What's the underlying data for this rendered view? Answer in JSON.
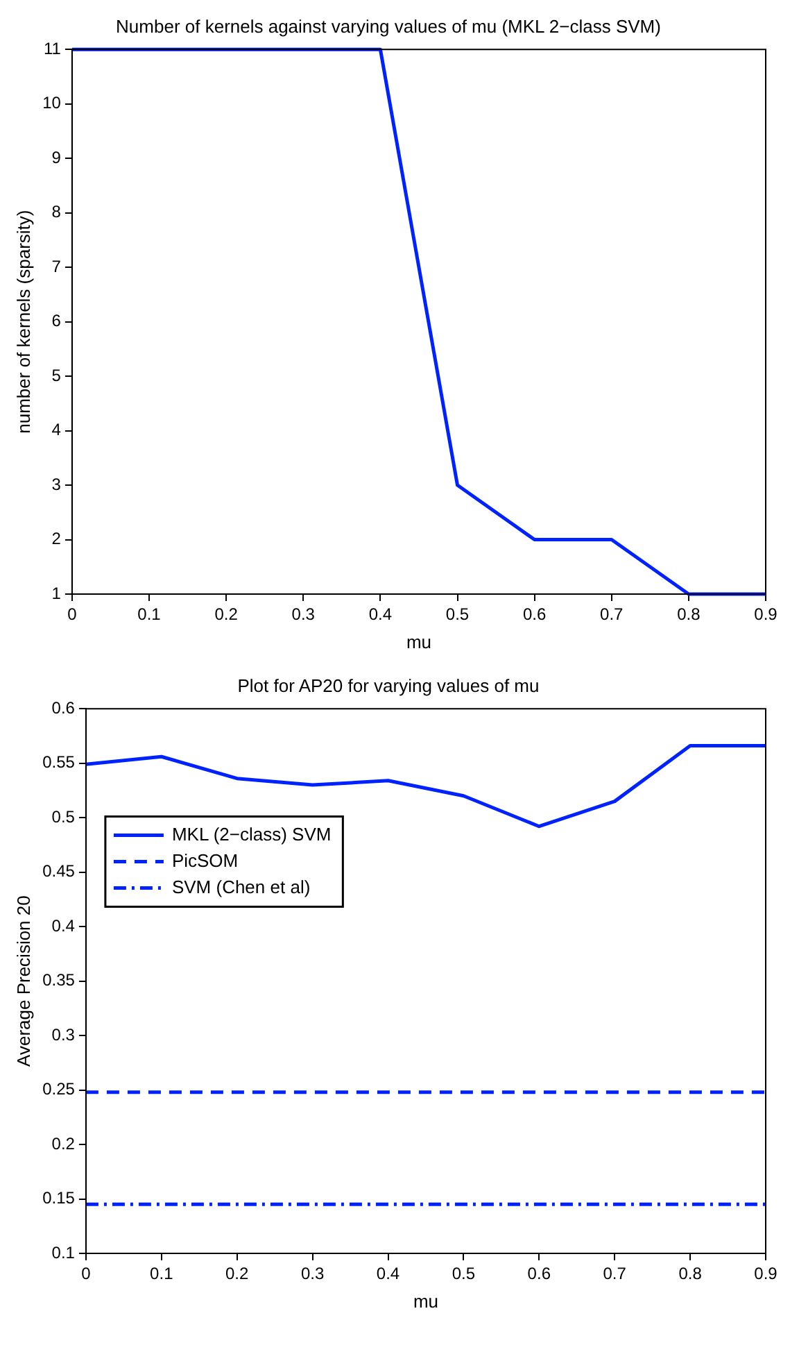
{
  "chart_data": [
    {
      "type": "line",
      "title": "Number of kernels against varying values of mu (MKL 2−class SVM)",
      "xlabel": "mu",
      "ylabel": "number of kernels (sparsity)",
      "x": [
        0,
        0.1,
        0.2,
        0.3,
        0.4,
        0.5,
        0.6,
        0.7,
        0.8,
        0.9
      ],
      "series": [
        {
          "color": "#0022ff",
          "values": [
            11,
            11,
            11,
            11,
            11,
            3,
            2,
            2,
            1,
            1
          ]
        }
      ],
      "xlim": [
        0,
        0.9
      ],
      "xticks": [
        0,
        0.1,
        0.2,
        0.3,
        0.4,
        0.5,
        0.6,
        0.7,
        0.8,
        0.9
      ],
      "ylim": [
        1,
        11
      ],
      "yticks": [
        1,
        2,
        3,
        4,
        5,
        6,
        7,
        8,
        9,
        10,
        11
      ],
      "grid": false,
      "marker": "none",
      "legend": false
    },
    {
      "type": "line",
      "title": "Plot for AP20 for varying values of mu",
      "xlabel": "mu",
      "ylabel": "Average Precision 20",
      "x": [
        0,
        0.1,
        0.2,
        0.3,
        0.4,
        0.5,
        0.6,
        0.7,
        0.8,
        0.9
      ],
      "series": [
        {
          "name": "MKL (2−class) SVM",
          "color": "#0022ff",
          "line_style": "solid",
          "values": [
            0.549,
            0.556,
            0.536,
            0.53,
            0.534,
            0.52,
            0.492,
            0.515,
            0.566,
            0.566
          ]
        },
        {
          "name": "PicSOM",
          "color": "#0022ff",
          "line_style": "dashed",
          "values": [
            0.248,
            0.248,
            0.248,
            0.248,
            0.248,
            0.248,
            0.248,
            0.248,
            0.248,
            0.248
          ]
        },
        {
          "name": "SVM (Chen et al)",
          "color": "#0022ff",
          "line_style": "dashdot",
          "values": [
            0.145,
            0.145,
            0.145,
            0.145,
            0.145,
            0.145,
            0.145,
            0.145,
            0.145,
            0.145
          ]
        }
      ],
      "xlim": [
        0,
        0.9
      ],
      "xticks": [
        0,
        0.1,
        0.2,
        0.3,
        0.4,
        0.5,
        0.6,
        0.7,
        0.8,
        0.9
      ],
      "ylim": [
        0.1,
        0.6
      ],
      "yticks": [
        0.1,
        0.15,
        0.2,
        0.25,
        0.3,
        0.35,
        0.4,
        0.45,
        0.5,
        0.55,
        0.6
      ],
      "grid": false,
      "marker": "none",
      "legend": "top left"
    }
  ]
}
